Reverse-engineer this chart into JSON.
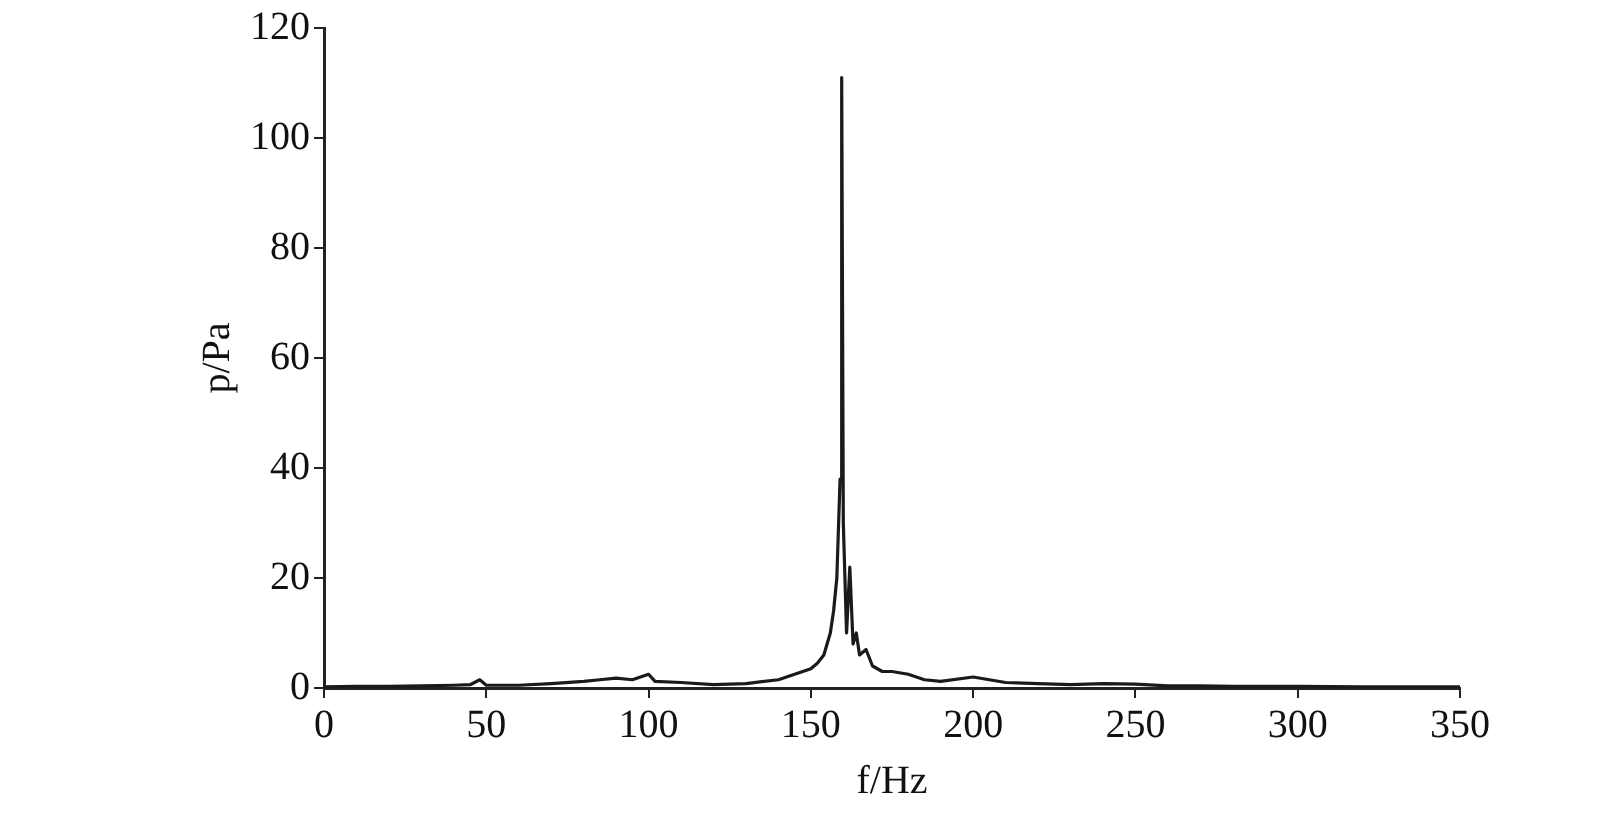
{
  "chart_data": {
    "type": "line",
    "xlabel": "f/Hz",
    "ylabel": "p/Pa",
    "xlim": [
      0,
      350
    ],
    "xticks": [
      0,
      50,
      100,
      150,
      200,
      250,
      300,
      350
    ],
    "ylim": [
      0,
      120
    ],
    "yticks": [
      0,
      20,
      40,
      60,
      80,
      100,
      120
    ],
    "grid": false,
    "legend": false,
    "marker": "none",
    "line_style": "solid",
    "series": [
      {
        "color": "#1a1a1a",
        "x": [
          0,
          10,
          20,
          30,
          40,
          45,
          48,
          50,
          60,
          70,
          80,
          85,
          90,
          95,
          100,
          102,
          110,
          120,
          130,
          140,
          145,
          150,
          152,
          154,
          156,
          157,
          158,
          159,
          159.5,
          160,
          161,
          162,
          163,
          164,
          165,
          167,
          169,
          172,
          175,
          180,
          185,
          190,
          200,
          210,
          220,
          230,
          240,
          250,
          260,
          270,
          280,
          300,
          320,
          350
        ],
        "values": [
          0.2,
          0.3,
          0.3,
          0.4,
          0.5,
          0.6,
          1.5,
          0.5,
          0.5,
          0.8,
          1.2,
          1.5,
          1.8,
          1.5,
          2.5,
          1.2,
          1,
          0.6,
          0.8,
          1.5,
          2.5,
          3.5,
          4.5,
          6,
          10,
          14,
          20,
          38,
          111,
          30,
          10,
          22,
          8,
          10,
          6,
          7,
          4,
          3,
          3,
          2.5,
          1.5,
          1.2,
          2,
          1,
          0.8,
          0.6,
          0.8,
          0.7,
          0.4,
          0.4,
          0.3,
          0.3,
          0.2,
          0.2
        ]
      }
    ]
  }
}
